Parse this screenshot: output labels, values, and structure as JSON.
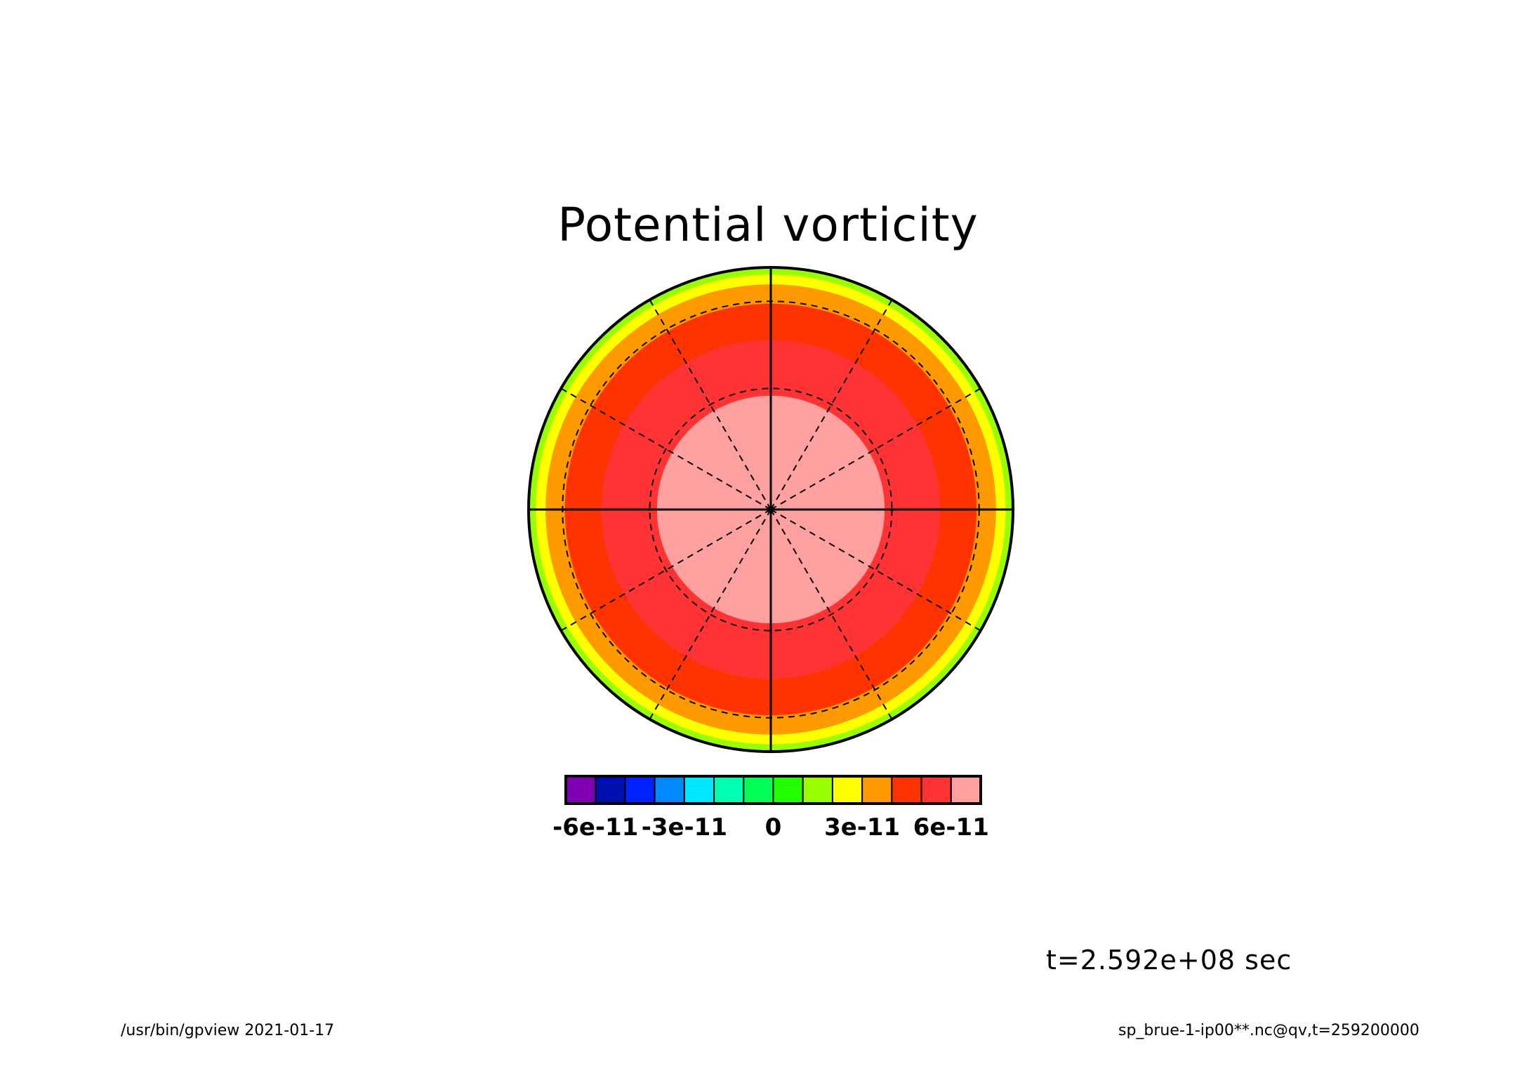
{
  "title": "Potential vorticity",
  "time_label": "t=2.592e+08 sec",
  "footer": {
    "left": "/usr/bin/gpview  2021-01-17",
    "right": "sp_brue-1-ip00**.nc@qv,t=259200000"
  },
  "chart_data": {
    "type": "heatmap",
    "projection": "polar",
    "title": "Potential vorticity",
    "rings": [
      {
        "from": 0.0,
        "to": 0.47,
        "level": 13
      },
      {
        "from": 0.47,
        "to": 0.7,
        "level": 12
      },
      {
        "from": 0.7,
        "to": 0.85,
        "level": 11
      },
      {
        "from": 0.85,
        "to": 0.93,
        "level": 10
      },
      {
        "from": 0.93,
        "to": 0.97,
        "level": 9
      },
      {
        "from": 0.97,
        "to": 1.0,
        "level": 8
      }
    ],
    "colorbar": {
      "colors": [
        "#7f00b3",
        "#0010b0",
        "#0022ff",
        "#0088ff",
        "#00e8ff",
        "#00ffb0",
        "#00ff55",
        "#22ff00",
        "#99ff00",
        "#ffff00",
        "#ff9900",
        "#ff3300",
        "#ff3333",
        "#ffa0a0"
      ],
      "tick_labels": [
        "-6e-11",
        "-3e-11",
        "0",
        "3e-11",
        "6e-11"
      ],
      "tick_values": [
        -6e-11,
        -3e-11,
        0,
        3e-11,
        6e-11
      ],
      "levels": [
        -7e-11,
        -6e-11,
        -5e-11,
        -4e-11,
        -3e-11,
        -2e-11,
        -1e-11,
        0,
        1e-11,
        2e-11,
        3e-11,
        4e-11,
        5e-11,
        6e-11,
        7e-11
      ]
    },
    "grid": true,
    "grid_lat_circles": [
      0.5,
      0.86
    ],
    "grid_meridian_step_deg": 30
  }
}
